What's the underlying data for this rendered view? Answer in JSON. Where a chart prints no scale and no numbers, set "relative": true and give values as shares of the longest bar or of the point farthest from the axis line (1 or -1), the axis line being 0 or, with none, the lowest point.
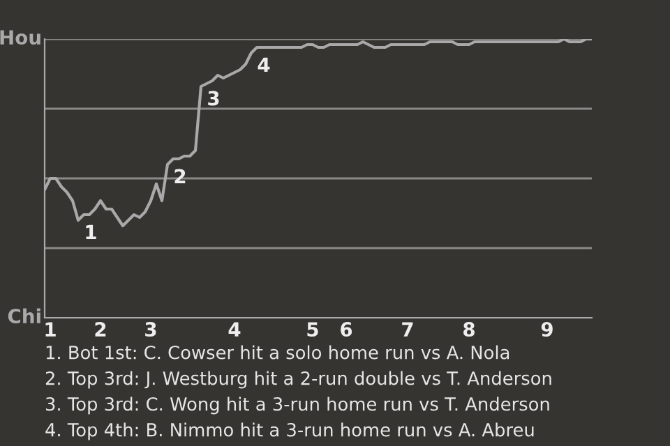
{
  "chart_data": {
    "type": "line",
    "relative": true,
    "categories": [
      null,
      "1",
      null,
      null,
      null,
      null,
      null,
      null,
      null,
      null,
      "2",
      null,
      null,
      null,
      null,
      null,
      null,
      null,
      null,
      "3",
      null,
      null,
      null,
      null,
      null,
      null,
      null,
      null,
      null,
      null,
      null,
      null,
      null,
      null,
      "4",
      null,
      null,
      null,
      null,
      null,
      null,
      null,
      null,
      null,
      null,
      null,
      null,
      null,
      "5",
      null,
      null,
      null,
      null,
      null,
      "6",
      null,
      null,
      null,
      null,
      null,
      null,
      null,
      null,
      null,
      null,
      "7",
      null,
      null,
      null,
      null,
      null,
      null,
      null,
      null,
      null,
      null,
      "8",
      null,
      null,
      null,
      null,
      null,
      null,
      null,
      null,
      null,
      null,
      null,
      null,
      null,
      "9",
      null,
      null,
      null,
      null,
      null,
      null,
      null,
      null
    ],
    "series": [
      {
        "color": "#a9a9a9",
        "values": [
          0.46,
          0.5,
          0.5,
          0.47,
          0.45,
          0.42,
          0.35,
          0.37,
          0.37,
          0.39,
          0.42,
          0.39,
          0.39,
          0.36,
          0.33,
          0.35,
          0.37,
          0.36,
          0.38,
          0.42,
          0.48,
          0.42,
          0.55,
          0.57,
          0.57,
          0.58,
          0.58,
          0.6,
          0.83,
          0.84,
          0.85,
          0.87,
          0.86,
          0.87,
          0.88,
          0.89,
          0.91,
          0.95,
          0.97,
          0.97,
          0.97,
          0.97,
          0.97,
          0.97,
          0.97,
          0.97,
          0.97,
          0.98,
          0.98,
          0.97,
          0.97,
          0.98,
          0.98,
          0.98,
          0.98,
          0.98,
          0.98,
          0.99,
          0.98,
          0.97,
          0.97,
          0.97,
          0.98,
          0.98,
          0.98,
          0.98,
          0.98,
          0.98,
          0.98,
          0.99,
          0.99,
          0.99,
          0.99,
          0.99,
          0.98,
          0.98,
          0.98,
          0.99,
          0.99,
          0.99,
          0.99,
          0.99,
          0.99,
          0.99,
          0.99,
          0.99,
          0.99,
          0.99,
          0.99,
          0.99,
          0.99,
          0.99,
          0.99,
          1,
          0.99,
          0.99,
          0.99,
          1,
          1
        ]
      }
    ],
    "marker": "none",
    "line_style": "solid",
    "ref_lines": [
      {
        "axis": "y",
        "value": 0.25,
        "color": "#8a8a88"
      },
      {
        "axis": "y",
        "value": 0.5,
        "color": "#8a8a88"
      },
      {
        "axis": "y",
        "value": 0.75,
        "color": "#8a8a88"
      },
      {
        "axis": "y",
        "value": 1,
        "color": "#8a8a88"
      }
    ],
    "annotations": [
      {
        "text": "1",
        "y": 0.35
      },
      {
        "text": "2",
        "y": 0.55
      },
      {
        "text": "3",
        "y": 0.83
      },
      {
        "text": "4",
        "y": 0.95
      },
      "Hou",
      "Chi",
      "1. Bot 1st: C. Cowser hit a solo home run vs A. Nola",
      "2. Top 3rd: J. Westburg hit a 2-run double vs T. Anderson",
      "3. Top 3rd: C. Wong hit a 3-run home run vs T. Anderson",
      "4. Top 4th: B. Nimmo hit a 3-run home run vs A. Abreu"
    ]
  }
}
